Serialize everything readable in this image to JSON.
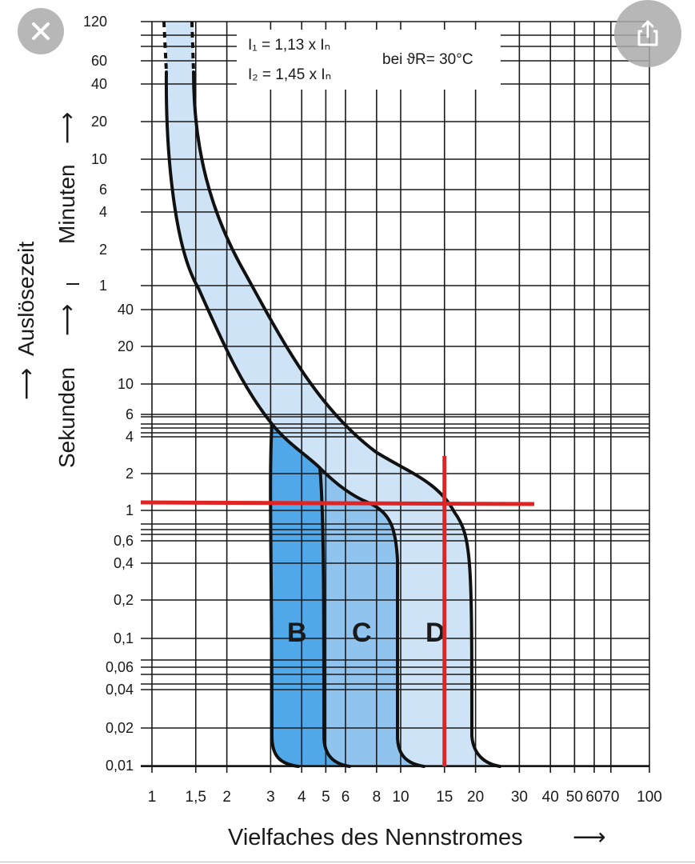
{
  "viewer": {
    "close_icon": "close-icon",
    "share_icon": "share-icon"
  },
  "chart_data": {
    "type": "line",
    "x_scale": "log",
    "y_scale": "log-like",
    "x_ticks": [
      "1",
      "1,5",
      "2",
      "3",
      "4",
      "5",
      "6",
      "8",
      "10",
      "15",
      "20",
      "30",
      "40",
      "50",
      "60",
      "70",
      "100"
    ],
    "x_tick_values": [
      1,
      1.5,
      2,
      3,
      4,
      5,
      6,
      8,
      10,
      15,
      20,
      30,
      40,
      50,
      60,
      70,
      100
    ],
    "xlabel": "Vielfaches des Nennstromes",
    "xlabel_arrow": "⟶",
    "y_ticks_minutes": [
      "120",
      "60",
      "40",
      "20",
      "10",
      "6",
      "4",
      "2",
      "1"
    ],
    "y_ticks_seconds": [
      "40",
      "20",
      "10",
      "6",
      "4",
      "2",
      "1",
      "0,6",
      "0,4",
      "0,2",
      "0,1",
      "0,06",
      "0,04",
      "0,02",
      "0,01"
    ],
    "ylabel": "Auslösezeit",
    "ylabel_minutes": "Minuten",
    "ylabel_seconds": "Sekunden",
    "ylabel_arrow": "⟶",
    "notes": {
      "i1": "I₁ = 1,13 x Iₙ",
      "i2": "I₂ = 1,45 x Iₙ",
      "temp": "bei ϑR= 30°C"
    },
    "curves": [
      {
        "name": "B",
        "magnetic_range": [
          3,
          5
        ],
        "color": "#50a8e8"
      },
      {
        "name": "C",
        "magnetic_range": [
          5,
          10
        ],
        "color": "#90c4ee"
      },
      {
        "name": "D",
        "magnetic_range": [
          10,
          20
        ],
        "color": "#cfe3f7"
      }
    ],
    "thermal_band": {
      "lower_multiple": 1.13,
      "upper_multiple": 1.45,
      "color": "#cfe3f7"
    },
    "annotations": {
      "horizontal_line_seconds": 1.1,
      "vertical_line_multiple": 15,
      "color": "#e02424"
    },
    "grid": true
  }
}
